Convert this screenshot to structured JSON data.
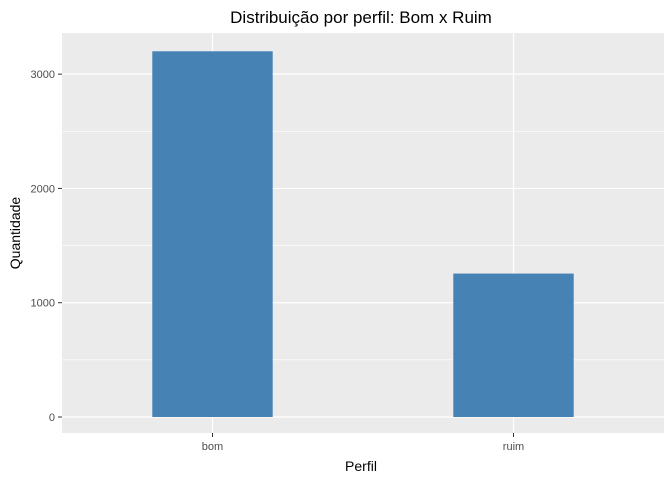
{
  "chart_data": {
    "type": "bar",
    "title": "Distribuição por perfil: Bom x Ruim",
    "xlabel": "Perfil",
    "ylabel": "Quantidade",
    "categories": [
      "bom",
      "ruim"
    ],
    "values": [
      3200,
      1255
    ],
    "ylim": [
      -140,
      3360
    ],
    "yticks": [
      "0",
      "1000",
      "2000",
      "3000"
    ],
    "grid": true,
    "legend": "none",
    "colors": {
      "bar": "#4682B4",
      "panel": "#EBEBEB",
      "grid": "#FFFFFF"
    }
  }
}
